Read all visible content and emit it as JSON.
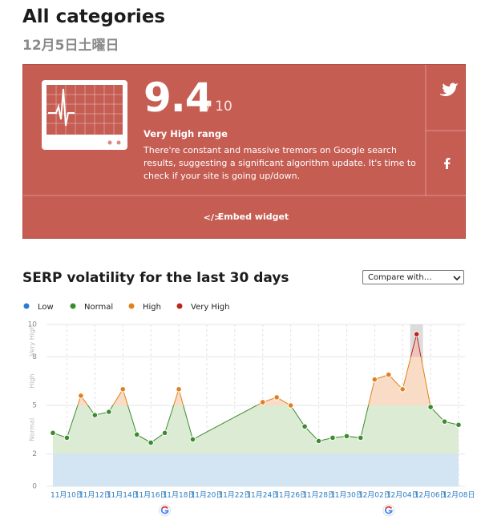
{
  "header": {
    "title": "All categories",
    "date": "12月5日土曜日"
  },
  "score_card": {
    "score": 9.4,
    "out_of": "/ 10",
    "range": "Very High range",
    "description": "There're constant and massive tremors on Google search results, suggesting a significant algorithm update. It's time to check if your site is going up/down.",
    "embed": "Embed widget"
  },
  "compare_select": "Compare with…",
  "chart_data": {
    "type": "area",
    "title": "SERP volatility for the last 30 days",
    "legend": [
      {
        "name": "Low",
        "color": "#2a7bd1",
        "fill": "#d3e4f2",
        "range": [
          0,
          2
        ]
      },
      {
        "name": "Normal",
        "color": "#3d8b31",
        "fill": "#dcebd3",
        "range": [
          2,
          5
        ]
      },
      {
        "name": "High",
        "color": "#e0801e",
        "fill": "#f8dcc5",
        "range": [
          5,
          8
        ]
      },
      {
        "name": "Very High",
        "color": "#b9271d",
        "fill": "#efc4bf",
        "range": [
          8,
          10
        ]
      }
    ],
    "x": [
      "11月09日",
      "11月10日",
      "11月11日",
      "11月12日",
      "11月13日",
      "11月14日",
      "11月15日",
      "11月16日",
      "11月17日",
      "11月18日",
      "11月19日",
      "11月24日",
      "11月25日",
      "11月26日",
      "11月27日",
      "11月28日",
      "11月29日",
      "11月30日",
      "12月01日",
      "12月02日",
      "12月03日",
      "12月04日",
      "12月05日",
      "12月06日",
      "12月07日",
      "12月08日"
    ],
    "values": [
      3.3,
      3.0,
      5.6,
      4.4,
      4.6,
      6.0,
      3.2,
      2.7,
      3.3,
      6.0,
      2.9,
      5.2,
      5.5,
      5.0,
      3.7,
      2.8,
      3.0,
      3.1,
      3.0,
      6.6,
      6.9,
      6.0,
      9.4,
      4.9,
      4.0,
      3.8
    ],
    "xlim": [
      "11月09日",
      "12月08日"
    ],
    "xticks": [
      "11月10日",
      "11月12日",
      "11月14日",
      "11月16日",
      "11月18日",
      "11月20日",
      "11月22日",
      "11月24日",
      "11月26日",
      "11月28日",
      "11月30日",
      "12月02日",
      "12月04日",
      "12月06日",
      "12月08日"
    ],
    "ylim": [
      0,
      10
    ],
    "yticks": [
      0,
      2,
      5,
      8,
      10
    ],
    "grid": true,
    "highlight": "12月05日",
    "google_updates": [
      "11月17日",
      "12月03日"
    ]
  }
}
